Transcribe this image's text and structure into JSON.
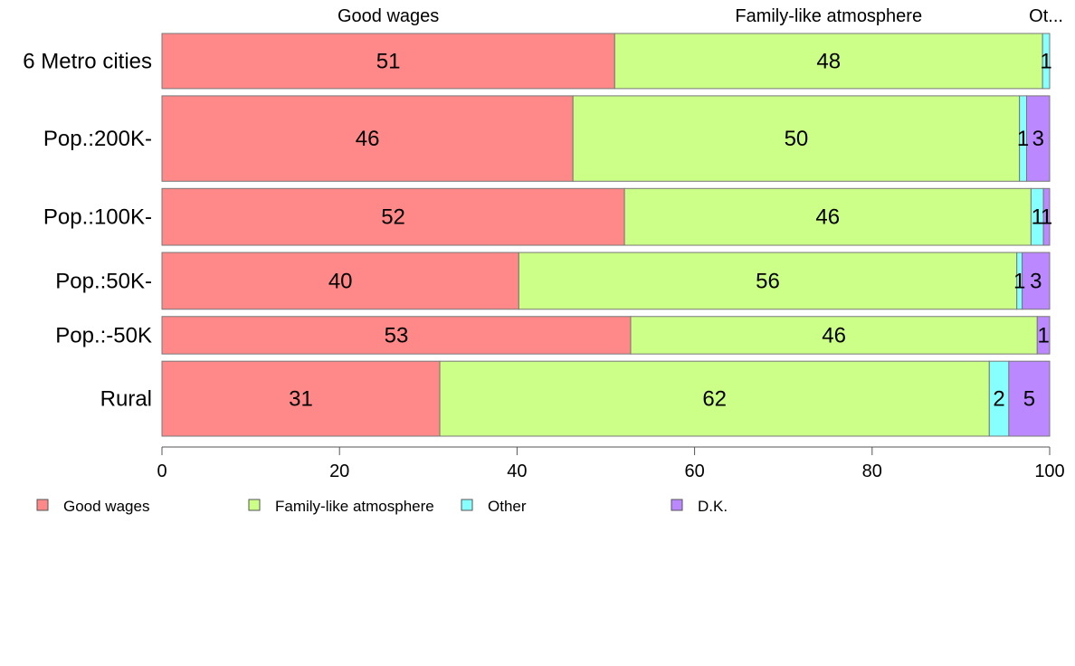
{
  "chart_data": {
    "type": "bar",
    "orientation": "horizontal",
    "stacked": true,
    "categories": [
      "6 Metro cities",
      "Pop.:200K-",
      "Pop.:100K-",
      "Pop.:50K-",
      "Pop.:-50K",
      "Rural"
    ],
    "bar_weights": [
      1.0,
      1.55,
      1.03,
      1.03,
      0.68,
      1.36
    ],
    "series": [
      {
        "name": "Good wages",
        "color": "#ff8888",
        "values": [
          51,
          46.3,
          52.1,
          40.2,
          52.8,
          31.3
        ]
      },
      {
        "name": "Family-like atmosphere",
        "color": "#ccff88",
        "values": [
          48.2,
          50.3,
          45.8,
          56.1,
          45.8,
          61.9
        ]
      },
      {
        "name": "Other",
        "color": "#88ffff",
        "values": [
          0.8,
          0.8,
          1.4,
          0.6,
          0,
          2.2
        ]
      },
      {
        "name": "D.K.",
        "color": "#bb88ff",
        "values": [
          0,
          2.6,
          0.7,
          3.1,
          1.4,
          4.6
        ]
      }
    ],
    "value_labels": [
      [
        "51",
        "48",
        "1",
        ""
      ],
      [
        "46",
        "50",
        "1",
        "3"
      ],
      [
        "52",
        "46",
        "1",
        "1"
      ],
      [
        "40",
        "56",
        "1",
        "3"
      ],
      [
        "53",
        "46",
        "",
        "1"
      ],
      [
        "31",
        "62",
        "2",
        "5"
      ]
    ],
    "top_labels": [
      "Good wages",
      "Family-like atmosphere",
      "Ot..."
    ],
    "top_label_positions": [
      25.5,
      75.1,
      99.6
    ],
    "xlim": [
      0,
      100
    ],
    "xticks": [
      "0",
      "20",
      "40",
      "60",
      "80",
      "100"
    ],
    "xtick_values": [
      0,
      20,
      40,
      60,
      80,
      100
    ],
    "legend": [
      "Good wages",
      "Family-like atmosphere",
      "Other",
      "D.K."
    ],
    "legend_placement": "bottom",
    "grid": false
  }
}
